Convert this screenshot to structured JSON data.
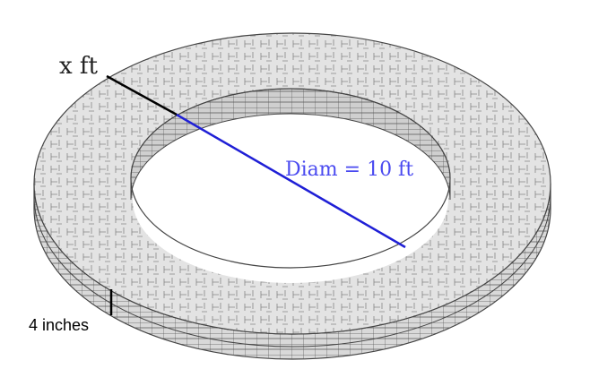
{
  "diagram": {
    "width_label": "x ft",
    "diameter_label": "Diam = 10 ft",
    "thickness_label": "4 inches"
  },
  "colors": {
    "ring_fill": "#e3e3e3",
    "rim_fill": "#d9d9d9",
    "grid_line": "#555555",
    "diameter_line": "#1f1fd6",
    "diameter_text": "#4a4af0",
    "annotation": "#000000"
  }
}
